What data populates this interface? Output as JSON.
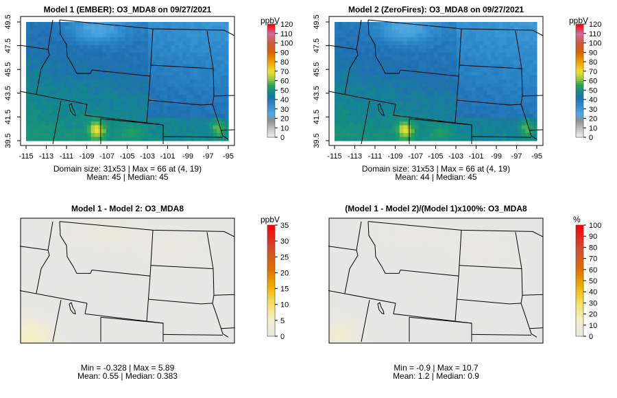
{
  "panels": [
    {
      "title": "Model 1 (EMBER): O3_MDA8 on 09/27/2021",
      "stats_line1": "Domain size: 31x53 | Max = 66 at (4, 19)",
      "stats_line2": "Mean: 45 |  Median: 45",
      "colorbar": {
        "unit": "ppbV",
        "ticks": [
          "0",
          "10",
          "20",
          "30",
          "40",
          "50",
          "60",
          "70",
          "80",
          "90",
          "100",
          "110",
          "120"
        ],
        "max": 120,
        "scale": "ozone"
      },
      "field": "model1",
      "axes": true
    },
    {
      "title": "Model 2 (ZeroFires): O3_MDA8 on 09/27/2021",
      "stats_line1": "Domain size: 31x53 | Max = 66 at (4, 19)",
      "stats_line2": "Mean: 44 |  Median: 45",
      "colorbar": {
        "unit": "ppbV",
        "ticks": [
          "0",
          "10",
          "20",
          "30",
          "40",
          "50",
          "60",
          "70",
          "80",
          "90",
          "100",
          "110",
          "120"
        ],
        "max": 120,
        "scale": "ozone"
      },
      "field": "model2",
      "axes": true
    },
    {
      "title": "Model 1 - Model 2: O3_MDA8",
      "stats_line1": "Min = -0.328 | Max = 5.89",
      "stats_line2": "Mean: 0.55 |  Median: 0.383",
      "colorbar": {
        "unit": "ppbV",
        "ticks": [
          "0",
          "5",
          "10",
          "15",
          "20",
          "25",
          "30",
          "35"
        ],
        "max": 35,
        "scale": "diff"
      },
      "field": "diff",
      "axes": false
    },
    {
      "title": "(Model 1 - Model 2)/(Model 1)x100%: O3_MDA8",
      "stats_line1": "Min = -0.9 | Max = 10.7",
      "stats_line2": "Mean: 1.2 |  Median: 0.9",
      "colorbar": {
        "unit": "%",
        "ticks": [
          "0",
          "10",
          "20",
          "30",
          "40",
          "50",
          "60",
          "70",
          "80",
          "90",
          "100"
        ],
        "max": 100,
        "scale": "diff"
      },
      "field": "pct",
      "axes": false
    }
  ],
  "axes": {
    "lon_ticks": [
      "-115",
      "-113",
      "-111",
      "-109",
      "-107",
      "-105",
      "-103",
      "-101",
      "-99",
      "-97",
      "-95"
    ],
    "lat_ticks": [
      "39.5",
      "41.5",
      "43.5",
      "45.5",
      "47.5",
      "49.5"
    ]
  },
  "colors": {
    "border": "#000000",
    "background": "#e6e6e6"
  }
}
